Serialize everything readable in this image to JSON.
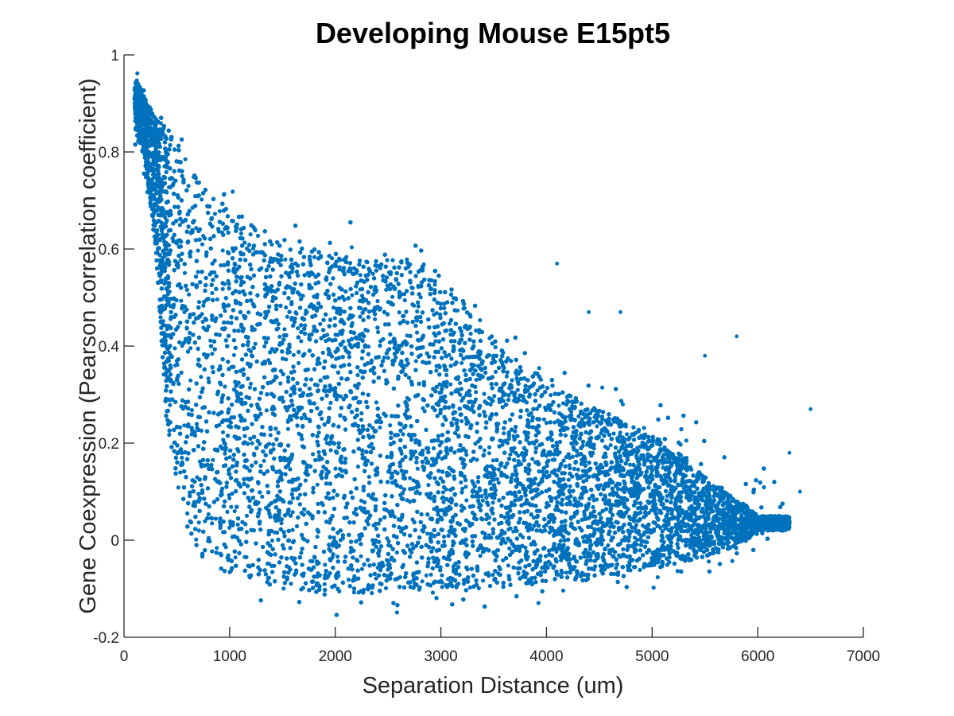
{
  "chart_data": {
    "type": "scatter",
    "title": "Developing Mouse E15pt5",
    "xlabel": "Separation Distance (um)",
    "ylabel": "Gene Coexpression (Pearson correlation coefficient)",
    "xlim": [
      0,
      7000
    ],
    "ylim": [
      -0.2,
      1
    ],
    "xticks": [
      0,
      1000,
      2000,
      3000,
      4000,
      5000,
      6000,
      7000
    ],
    "yticks": [
      -0.2,
      0,
      0.2,
      0.4,
      0.6,
      0.8,
      1
    ],
    "xtick_labels": [
      "0",
      "1000",
      "2000",
      "3000",
      "4000",
      "5000",
      "6000",
      "7000"
    ],
    "ytick_labels": [
      "-0.2",
      "0",
      "0.2",
      "0.4",
      "0.6",
      "0.8",
      "1"
    ],
    "grid": false,
    "box": false,
    "marker_color": "#0072BD",
    "series": [
      {
        "distribution": {
          "upper_envelope": [
            [
              100,
              0.98
            ],
            [
              150,
              0.96
            ],
            [
              200,
              0.93
            ],
            [
              250,
              0.92
            ],
            [
              300,
              0.89
            ],
            [
              350,
              0.88
            ],
            [
              400,
              0.87
            ],
            [
              500,
              0.84
            ],
            [
              600,
              0.81
            ],
            [
              800,
              0.77
            ],
            [
              1000,
              0.73
            ],
            [
              1200,
              0.71
            ],
            [
              1400,
              0.69
            ],
            [
              1600,
              0.67
            ],
            [
              1800,
              0.66
            ],
            [
              2000,
              0.66
            ],
            [
              2200,
              0.66
            ],
            [
              2400,
              0.67
            ],
            [
              2600,
              0.67
            ],
            [
              2800,
              0.66
            ],
            [
              3000,
              0.62
            ],
            [
              3200,
              0.57
            ],
            [
              3400,
              0.52
            ],
            [
              3600,
              0.47
            ],
            [
              3800,
              0.42
            ],
            [
              4000,
              0.38
            ],
            [
              4200,
              0.36
            ],
            [
              4500,
              0.33
            ],
            [
              4800,
              0.31
            ],
            [
              5100,
              0.28
            ],
            [
              5400,
              0.25
            ],
            [
              5700,
              0.21
            ],
            [
              5900,
              0.18
            ],
            [
              6100,
              0.14
            ],
            [
              6300,
              0.08
            ]
          ],
          "lower_envelope": [
            [
              100,
              0.82
            ],
            [
              150,
              0.78
            ],
            [
              200,
              0.73
            ],
            [
              250,
              0.7
            ],
            [
              300,
              0.62
            ],
            [
              350,
              0.45
            ],
            [
              400,
              0.3
            ],
            [
              450,
              0.2
            ],
            [
              500,
              0.1
            ],
            [
              600,
              0.01
            ],
            [
              700,
              -0.05
            ],
            [
              800,
              -0.09
            ],
            [
              1000,
              -0.11
            ],
            [
              1200,
              -0.13
            ],
            [
              1400,
              -0.14
            ],
            [
              1600,
              -0.15
            ],
            [
              1800,
              -0.155
            ],
            [
              2000,
              -0.16
            ],
            [
              2500,
              -0.155
            ],
            [
              3000,
              -0.15
            ],
            [
              3500,
              -0.145
            ],
            [
              4000,
              -0.13
            ],
            [
              4500,
              -0.12
            ],
            [
              5000,
              -0.1
            ],
            [
              5400,
              -0.08
            ],
            [
              5700,
              -0.05
            ],
            [
              5900,
              -0.03
            ],
            [
              6100,
              0.0
            ],
            [
              6300,
              0.05
            ]
          ],
          "dense_upper": [
            [
              100,
              0.96
            ],
            [
              200,
              0.91
            ],
            [
              300,
              0.87
            ],
            [
              400,
              0.85
            ],
            [
              500,
              0.82
            ],
            [
              600,
              0.78
            ],
            [
              800,
              0.72
            ],
            [
              1000,
              0.68
            ],
            [
              1200,
              0.65
            ],
            [
              1500,
              0.62
            ],
            [
              1800,
              0.6
            ],
            [
              2000,
              0.59
            ],
            [
              2300,
              0.58
            ],
            [
              2600,
              0.58
            ],
            [
              2800,
              0.58
            ],
            [
              3000,
              0.55
            ],
            [
              3200,
              0.5
            ],
            [
              3500,
              0.42
            ],
            [
              3800,
              0.36
            ],
            [
              4000,
              0.33
            ],
            [
              4300,
              0.29
            ],
            [
              4600,
              0.26
            ],
            [
              4900,
              0.23
            ],
            [
              5200,
              0.19
            ],
            [
              5500,
              0.13
            ],
            [
              5700,
              0.1
            ],
            [
              5900,
              0.07
            ],
            [
              6000,
              0.05
            ]
          ],
          "dense_lower": [
            [
              100,
              0.85
            ],
            [
              200,
              0.78
            ],
            [
              300,
              0.6
            ],
            [
              400,
              0.25
            ],
            [
              500,
              0.12
            ],
            [
              600,
              0.02
            ],
            [
              700,
              -0.03
            ],
            [
              900,
              -0.06
            ],
            [
              1200,
              -0.08
            ],
            [
              1500,
              -0.1
            ],
            [
              2000,
              -0.11
            ],
            [
              2500,
              -0.11
            ],
            [
              3000,
              -0.1
            ],
            [
              3500,
              -0.1
            ],
            [
              4000,
              -0.09
            ],
            [
              4500,
              -0.08
            ],
            [
              5000,
              -0.06
            ],
            [
              5400,
              -0.04
            ],
            [
              5700,
              -0.02
            ],
            [
              5900,
              0.0
            ],
            [
              6000,
              0.02
            ]
          ],
          "notable_outliers": [
            [
              4100,
              0.57
            ],
            [
              4400,
              0.47
            ],
            [
              5800,
              0.42
            ],
            [
              6500,
              0.27
            ],
            [
              6400,
              0.1
            ],
            [
              6300,
              0.18
            ],
            [
              4700,
              0.47
            ],
            [
              5500,
              0.38
            ]
          ],
          "x_range": [
            100,
            6500
          ],
          "approx_point_count": 26000
        }
      }
    ]
  }
}
